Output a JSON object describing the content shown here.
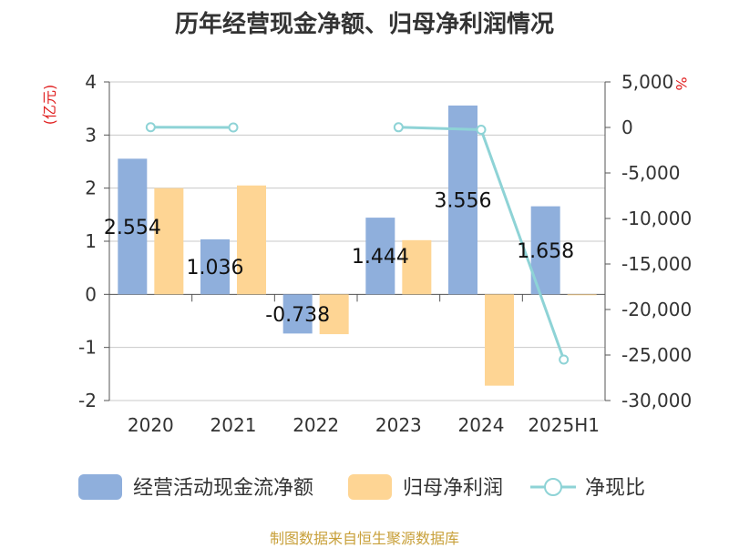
{
  "title": "历年经营现金净额、归母净利润情况",
  "source": "制图数据来自恒生聚源数据库",
  "chart_data": {
    "type": "bar",
    "categories": [
      "2020",
      "2021",
      "2022",
      "2023",
      "2024",
      "2025H1"
    ],
    "left_axis_unit": "(亿元)",
    "right_axis_unit": "%",
    "left_ylim": [
      -2,
      4
    ],
    "left_ticks": [
      4,
      3,
      2,
      1,
      0,
      -1,
      -2
    ],
    "right_ylim": [
      -30000,
      5000
    ],
    "right_ticks": [
      "5,000",
      "0",
      "-5,000",
      "-10,000",
      "-15,000",
      "-20,000",
      "-25,000",
      "-30,000"
    ],
    "right_tick_values": [
      5000,
      0,
      -5000,
      -10000,
      -15000,
      -20000,
      -25000,
      -30000
    ],
    "grid": true,
    "legend_position": "bottom",
    "series": [
      {
        "name": "经营活动现金流净额",
        "kind": "bar",
        "color": "#8fafdc",
        "values": [
          2.554,
          1.036,
          -0.738,
          1.444,
          3.556,
          1.658
        ],
        "labels": [
          "2.554",
          "1.036",
          "-0.738",
          "1.444",
          "3.556",
          "1.658"
        ]
      },
      {
        "name": "归母净利润",
        "kind": "bar",
        "color": "#fed594",
        "values": [
          2.0,
          2.05,
          -0.75,
          1.02,
          -1.72,
          0.0
        ]
      },
      {
        "name": "净现比",
        "kind": "line",
        "color": "#8ed3d6",
        "values": [
          25,
          0,
          null,
          20,
          -250,
          -25500
        ]
      }
    ]
  }
}
